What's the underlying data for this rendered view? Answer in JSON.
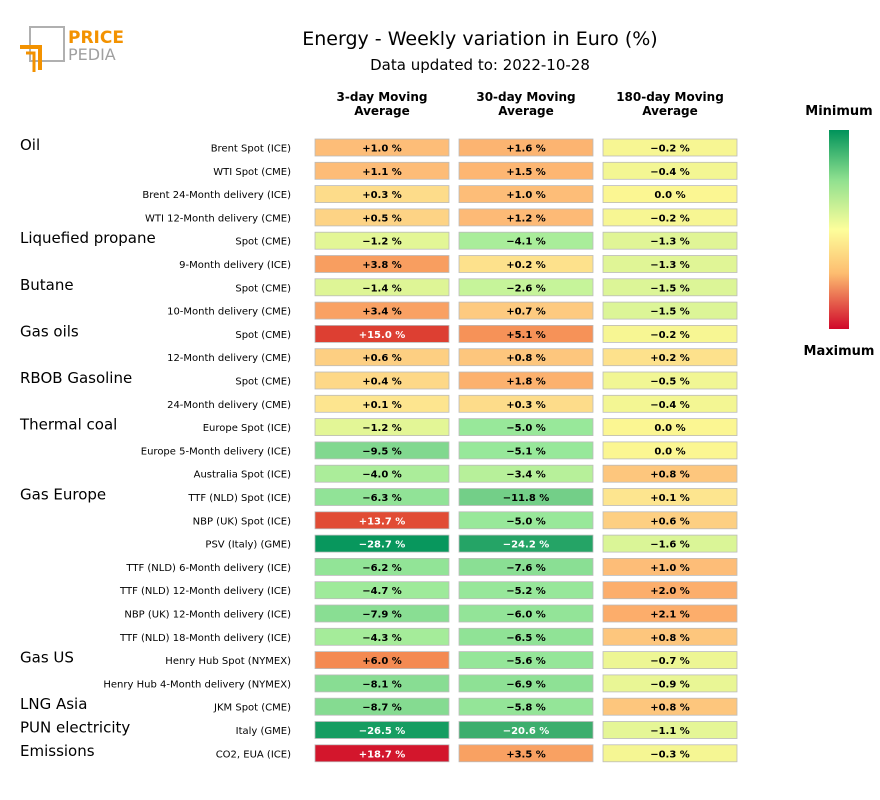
{
  "brand": {
    "name_part1": "PRICE",
    "name_part2": "PEDIA",
    "primary_color": "#f39200",
    "secondary_color": "#a0a0a0"
  },
  "colors": {
    "minimum": "#00935a",
    "mid": "#fdfe9b",
    "maximum": "#d0082a"
  },
  "chart_data": {
    "type": "table",
    "title": "Energy - Weekly variation in Euro (%)",
    "subtitle": "Data updated to: 2022-10-28",
    "columns": [
      {
        "label_line1": "3-day Moving",
        "label_line2": "Average"
      },
      {
        "label_line1": "30-day Moving",
        "label_line2": "Average"
      },
      {
        "label_line1": "180-day Moving",
        "label_line2": "Average"
      }
    ],
    "legend": {
      "top_label": "Minimum",
      "bottom_label": "Maximum",
      "range": [
        -30,
        20
      ]
    },
    "rows": [
      {
        "group": "Oil",
        "label": "Brent Spot (ICE)",
        "values": [
          1.0,
          1.6,
          -0.2
        ],
        "text": [
          "+1.0 %",
          "+1.6 %",
          "−0.2 %"
        ]
      },
      {
        "group": "",
        "label": "WTI Spot (CME)",
        "values": [
          1.1,
          1.5,
          -0.4
        ],
        "text": [
          "+1.1 %",
          "+1.5 %",
          "−0.4 %"
        ]
      },
      {
        "group": "",
        "label": "Brent 24-Month delivery (ICE)",
        "values": [
          0.3,
          1.0,
          0.0
        ],
        "text": [
          "+0.3 %",
          "+1.0 %",
          "0.0 %"
        ]
      },
      {
        "group": "",
        "label": "WTI 12-Month delivery (CME)",
        "values": [
          0.5,
          1.2,
          -0.2
        ],
        "text": [
          "+0.5 %",
          "+1.2 %",
          "−0.2 %"
        ]
      },
      {
        "group": "Liquefied propane",
        "label": "Spot (CME)",
        "values": [
          -1.2,
          -4.1,
          -1.3
        ],
        "text": [
          "−1.2 %",
          "−4.1 %",
          "−1.3 %"
        ]
      },
      {
        "group": "",
        "label": "9-Month delivery (ICE)",
        "values": [
          3.8,
          0.2,
          -1.3
        ],
        "text": [
          "+3.8 %",
          "+0.2 %",
          "−1.3 %"
        ]
      },
      {
        "group": "Butane",
        "label": "Spot (CME)",
        "values": [
          -1.4,
          -2.6,
          -1.5
        ],
        "text": [
          "−1.4 %",
          "−2.6 %",
          "−1.5 %"
        ]
      },
      {
        "group": "",
        "label": "10-Month delivery (CME)",
        "values": [
          3.4,
          0.7,
          -1.5
        ],
        "text": [
          "+3.4 %",
          "+0.7 %",
          "−1.5 %"
        ]
      },
      {
        "group": "Gas oils",
        "label": "Spot (CME)",
        "values": [
          15.0,
          5.1,
          -0.2
        ],
        "text": [
          "+15.0 %",
          "+5.1 %",
          "−0.2 %"
        ]
      },
      {
        "group": "",
        "label": "12-Month delivery (CME)",
        "values": [
          0.6,
          0.8,
          0.2
        ],
        "text": [
          "+0.6 %",
          "+0.8 %",
          "+0.2 %"
        ]
      },
      {
        "group": "RBOB Gasoline",
        "label": "Spot (CME)",
        "values": [
          0.4,
          1.8,
          -0.5
        ],
        "text": [
          "+0.4 %",
          "+1.8 %",
          "−0.5 %"
        ]
      },
      {
        "group": "",
        "label": "24-Month delivery (CME)",
        "values": [
          0.1,
          0.3,
          -0.4
        ],
        "text": [
          "+0.1 %",
          "+0.3 %",
          "−0.4 %"
        ]
      },
      {
        "group": "Thermal coal",
        "label": "Europe Spot (ICE)",
        "values": [
          -1.2,
          -5.0,
          0.0
        ],
        "text": [
          "−1.2 %",
          "−5.0 %",
          "0.0 %"
        ]
      },
      {
        "group": "",
        "label": "Europe 5-Month delivery (ICE)",
        "values": [
          -9.5,
          -5.1,
          0.0
        ],
        "text": [
          "−9.5 %",
          "−5.1 %",
          "0.0 %"
        ]
      },
      {
        "group": "",
        "label": "Australia Spot (ICE)",
        "values": [
          -4.0,
          -3.4,
          0.8
        ],
        "text": [
          "−4.0 %",
          "−3.4 %",
          "+0.8 %"
        ]
      },
      {
        "group": "Gas Europe",
        "label": "TTF (NLD) Spot (ICE)",
        "values": [
          -6.3,
          -11.8,
          0.1
        ],
        "text": [
          "−6.3 %",
          "−11.8 %",
          "+0.1 %"
        ]
      },
      {
        "group": "",
        "label": "NBP (UK) Spot (ICE)",
        "values": [
          13.7,
          -5.0,
          0.6
        ],
        "text": [
          "+13.7 %",
          "−5.0 %",
          "+0.6 %"
        ]
      },
      {
        "group": "",
        "label": "PSV (Italy) (GME)",
        "values": [
          -28.7,
          -24.2,
          -1.6
        ],
        "text": [
          "−28.7 %",
          "−24.2 %",
          "−1.6 %"
        ]
      },
      {
        "group": "",
        "label": "TTF (NLD) 6-Month delivery (ICE)",
        "values": [
          -6.2,
          -7.6,
          1.0
        ],
        "text": [
          "−6.2 %",
          "−7.6 %",
          "+1.0 %"
        ]
      },
      {
        "group": "",
        "label": "TTF (NLD) 12-Month delivery (ICE)",
        "values": [
          -4.7,
          -5.2,
          2.0
        ],
        "text": [
          "−4.7 %",
          "−5.2 %",
          "+2.0 %"
        ]
      },
      {
        "group": "",
        "label": "NBP (UK) 12-Month delivery (ICE)",
        "values": [
          -7.9,
          -6.0,
          2.1
        ],
        "text": [
          "−7.9 %",
          "−6.0 %",
          "+2.1 %"
        ]
      },
      {
        "group": "",
        "label": "TTF (NLD) 18-Month delivery (ICE)",
        "values": [
          -4.3,
          -6.5,
          0.8
        ],
        "text": [
          "−4.3 %",
          "−6.5 %",
          "+0.8 %"
        ]
      },
      {
        "group": "Gas US",
        "label": "Henry Hub Spot (NYMEX)",
        "values": [
          6.0,
          -5.6,
          -0.7
        ],
        "text": [
          "+6.0 %",
          "−5.6 %",
          "−0.7 %"
        ]
      },
      {
        "group": "",
        "label": "Henry Hub 4-Month delivery (NYMEX)",
        "values": [
          -8.1,
          -6.9,
          -0.9
        ],
        "text": [
          "−8.1 %",
          "−6.9 %",
          "−0.9 %"
        ]
      },
      {
        "group": "LNG Asia",
        "label": "JKM Spot (CME)",
        "values": [
          -8.7,
          -5.8,
          0.8
        ],
        "text": [
          "−8.7 %",
          "−5.8 %",
          "+0.8 %"
        ]
      },
      {
        "group": "PUN electricity",
        "label": "Italy (GME)",
        "values": [
          -26.5,
          -20.6,
          -1.1
        ],
        "text": [
          "−26.5 %",
          "−20.6 %",
          "−1.1 %"
        ]
      },
      {
        "group": "Emissions",
        "label": "CO2, EUA (ICE)",
        "values": [
          18.7,
          3.5,
          -0.3
        ],
        "text": [
          "+18.7 %",
          "+3.5 %",
          "−0.3 %"
        ]
      }
    ]
  }
}
